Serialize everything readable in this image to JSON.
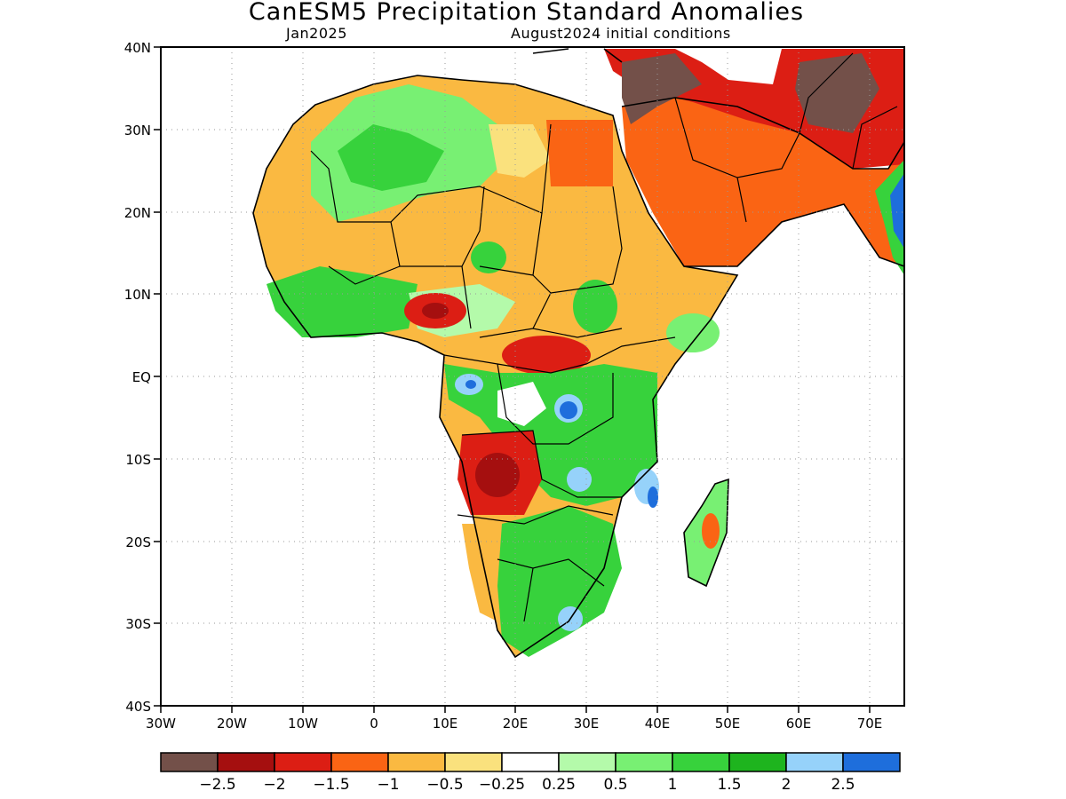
{
  "title": "CanESM5 Precipitation Standard Anomalies",
  "subtitle_left": "Jan2025",
  "subtitle_right": "August2024 initial conditions",
  "map": {
    "lon_range": [
      -30,
      75
    ],
    "lat_range": [
      -40,
      40
    ],
    "x_ticks": [
      "30W",
      "20W",
      "10W",
      "0",
      "10E",
      "20E",
      "30E",
      "40E",
      "50E",
      "60E",
      "70E"
    ],
    "y_ticks": [
      "40N",
      "30N",
      "20N",
      "10N",
      "EQ",
      "10S",
      "20S",
      "30S",
      "40S"
    ],
    "gridlines": "dotted"
  },
  "colorbar": {
    "colors": [
      "#735049",
      "#a50f0f",
      "#dc1e14",
      "#fa6414",
      "#fab941",
      "#fae17d",
      "#ffffff",
      "#b4faaa",
      "#78f073",
      "#37d23c",
      "#1eb41e",
      "#96d2fa",
      "#1e6edc"
    ],
    "labels": [
      "−2.5",
      "−2",
      "−1.5",
      "−1",
      "−0.5",
      "−0.25",
      "0.25",
      "0.5",
      "1",
      "1.5",
      "2",
      "2.5"
    ]
  }
}
